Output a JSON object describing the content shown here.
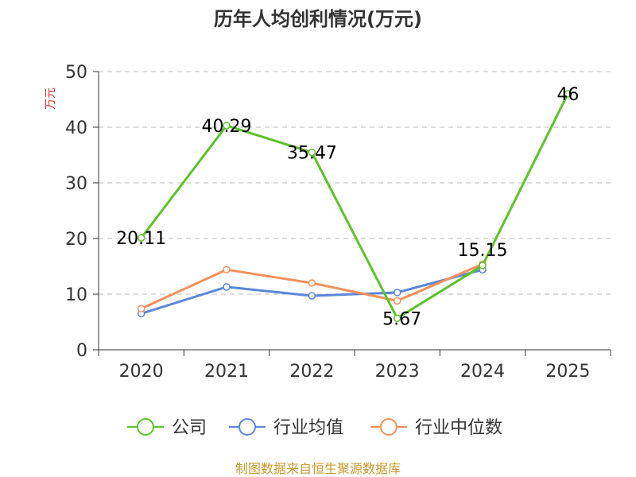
{
  "chart_data": {
    "type": "line",
    "title": "历年人均创利情况(万元)",
    "ylabel": "万元",
    "categories": [
      "2020",
      "2021",
      "2022",
      "2023",
      "2024",
      "2025"
    ],
    "ylim": [
      0,
      50
    ],
    "yticks": [
      0,
      10,
      20,
      30,
      40,
      50
    ],
    "grid": true,
    "legend_position": "bottom",
    "series": [
      {
        "name": "公司",
        "color": "#5cc22a",
        "values": [
          20.11,
          40.29,
          35.47,
          5.67,
          15.15,
          46
        ],
        "labels": [
          "20.11",
          "40.29",
          "35.47",
          "5.67",
          "15.15",
          "46"
        ]
      },
      {
        "name": "行业均值",
        "color": "#5b87d9",
        "values": [
          6.5,
          11.3,
          9.7,
          10.3,
          14.4,
          null
        ],
        "labels": []
      },
      {
        "name": "行业中位数",
        "color": "#f3905c",
        "values": [
          7.4,
          14.4,
          12.0,
          8.8,
          15.4,
          null
        ],
        "labels": []
      }
    ]
  },
  "source": "制图数据来自恒生聚源数据库",
  "colors": {
    "title": "#333333",
    "ylabel": "#e03030",
    "source": "#c79a2e",
    "grid": "#bbbbbb",
    "axis": "#333333"
  }
}
